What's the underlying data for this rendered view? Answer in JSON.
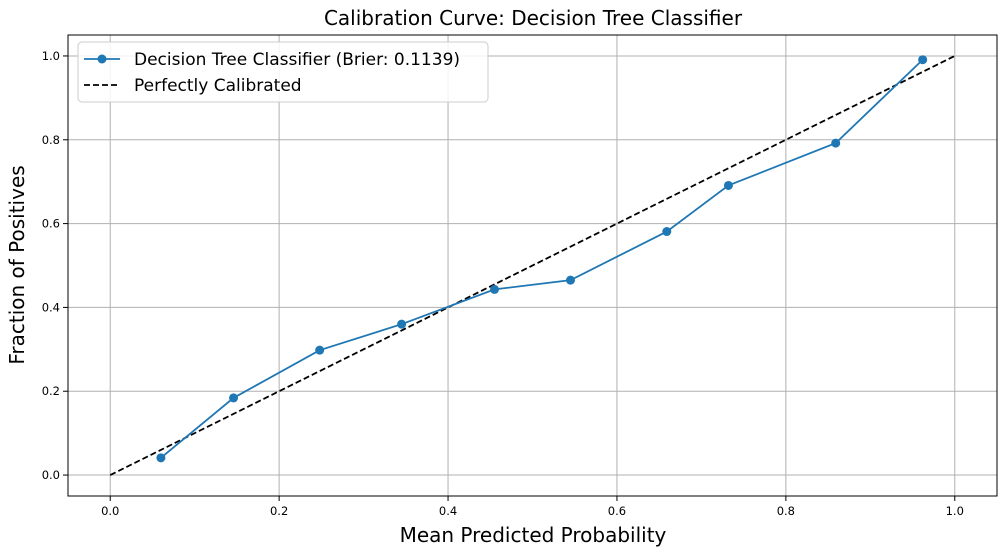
{
  "chart_data": {
    "type": "line",
    "title": "Calibration Curve: Decision Tree Classifier",
    "xlabel": "Mean Predicted Probability",
    "ylabel": "Fraction of Positives",
    "xlim": [
      -0.05,
      1.05
    ],
    "ylim": [
      -0.05,
      1.05
    ],
    "xticks": [
      "0.0",
      "0.2",
      "0.4",
      "0.6",
      "0.8",
      "1.0"
    ],
    "yticks": [
      "0.0",
      "0.2",
      "0.4",
      "0.6",
      "0.8",
      "1.0"
    ],
    "grid": true,
    "legend_position": "top-left",
    "series": [
      {
        "name": "Decision Tree Classifier (Brier: 0.1139)",
        "color": "#1f77b4",
        "style": "solid-with-markers",
        "x": [
          0.06,
          0.146,
          0.248,
          0.345,
          0.455,
          0.545,
          0.659,
          0.732,
          0.859,
          0.962
        ],
        "y": [
          0.041,
          0.184,
          0.298,
          0.36,
          0.443,
          0.465,
          0.581,
          0.691,
          0.792,
          0.991
        ]
      },
      {
        "name": "Perfectly Calibrated",
        "color": "#000000",
        "style": "dashed",
        "x": [
          0.0,
          1.0
        ],
        "y": [
          0.0,
          1.0
        ]
      }
    ]
  }
}
